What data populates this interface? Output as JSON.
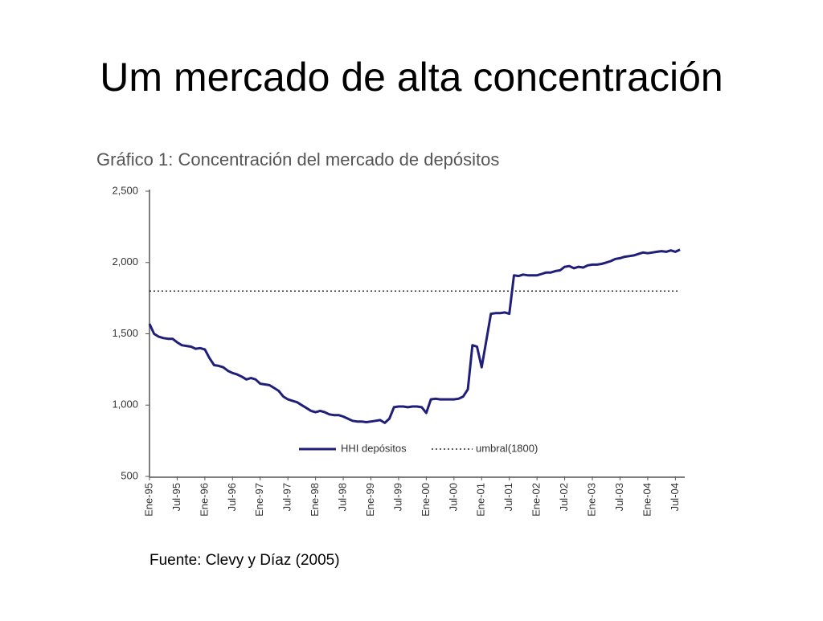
{
  "slide_title": "Um mercado de alta concentración",
  "source": "Fuente: Clevy y Díaz (2005)",
  "chart_data": {
    "type": "line",
    "title": "Gráfico 1: Concentración del mercado de depósitos",
    "categories": [
      "Ene-95",
      null,
      null,
      null,
      null,
      null,
      "Jul-95",
      null,
      null,
      null,
      null,
      null,
      "Ene-96",
      null,
      null,
      null,
      null,
      null,
      "Jul-96",
      null,
      null,
      null,
      null,
      null,
      "Ene-97",
      null,
      null,
      null,
      null,
      null,
      "Jul-97",
      null,
      null,
      null,
      null,
      null,
      "Ene-98",
      null,
      null,
      null,
      null,
      null,
      "Jul-98",
      null,
      null,
      null,
      null,
      null,
      "Ene-99",
      null,
      null,
      null,
      null,
      null,
      "Jul-99",
      null,
      null,
      null,
      null,
      null,
      "Ene-00",
      null,
      null,
      null,
      null,
      null,
      "Jul-00",
      null,
      null,
      null,
      null,
      null,
      "Ene-01",
      null,
      null,
      null,
      null,
      null,
      "Jul-01",
      null,
      null,
      null,
      null,
      null,
      "Ene-02",
      null,
      null,
      null,
      null,
      null,
      "Jul-02",
      null,
      null,
      null,
      null,
      null,
      "Ene-03",
      null,
      null,
      null,
      null,
      null,
      "Jul-03",
      null,
      null,
      null,
      null,
      null,
      "Ene-04",
      null,
      null,
      null,
      null,
      null,
      "Jul-04",
      null
    ],
    "series": [
      {
        "name": "HHI depósitos",
        "color": "#1f1f7a",
        "values": [
          1570,
          1500,
          1480,
          1470,
          1465,
          1465,
          1440,
          1420,
          1415,
          1410,
          1395,
          1400,
          1390,
          1330,
          1280,
          1275,
          1265,
          1240,
          1225,
          1215,
          1200,
          1180,
          1190,
          1180,
          1150,
          1145,
          1140,
          1120,
          1100,
          1060,
          1040,
          1030,
          1020,
          1000,
          980,
          960,
          950,
          960,
          950,
          935,
          930,
          930,
          920,
          905,
          890,
          885,
          885,
          880,
          885,
          890,
          895,
          875,
          905,
          985,
          990,
          990,
          985,
          990,
          990,
          985,
          945,
          1040,
          1045,
          1040,
          1040,
          1040,
          1040,
          1045,
          1060,
          1110,
          1420,
          1410,
          1265,
          1450,
          1640,
          1645,
          1645,
          1650,
          1640,
          1910,
          1905,
          1915,
          1910,
          1910,
          1910,
          1920,
          1930,
          1930,
          1940,
          1945,
          1970,
          1975,
          1960,
          1970,
          1965,
          1980,
          1985,
          1985,
          1990,
          2000,
          2010,
          2025,
          2030,
          2040,
          2045,
          2050,
          2060,
          2070,
          2065,
          2070,
          2075,
          2080,
          2075,
          2085,
          2075,
          2090
        ]
      }
    ],
    "threshold": {
      "name": "umbral(1800)",
      "value": 1800,
      "color": "#000000"
    },
    "ylim": [
      500,
      2500
    ],
    "yticks": [
      500,
      {
        "value": 1000,
        "label": "1,000"
      },
      {
        "value": 1500,
        "label": "1,500"
      },
      {
        "value": 2000,
        "label": "2,000"
      },
      {
        "value": 2500,
        "label": "2,500"
      }
    ]
  }
}
